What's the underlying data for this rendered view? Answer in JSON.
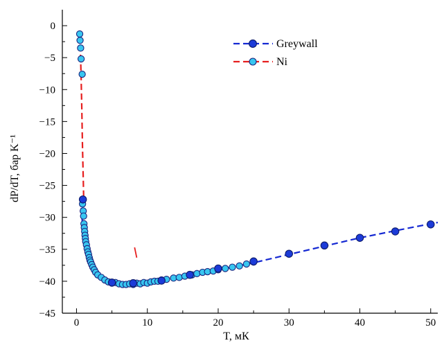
{
  "chart_data": {
    "type": "scatter",
    "xlabel": "T, мК",
    "ylabel": "dP/dT, бар K⁻¹",
    "xlim": [
      -2,
      51
    ],
    "ylim": [
      -45,
      2.5
    ],
    "xticks": [
      0,
      10,
      20,
      30,
      40,
      50
    ],
    "yticks": [
      0,
      -5,
      -10,
      -15,
      -20,
      -25,
      -30,
      -35,
      -40,
      -45
    ],
    "xtick_labels": [
      "0",
      "10",
      "20",
      "30",
      "40",
      "50"
    ],
    "ytick_labels": [
      "0",
      "−5",
      "−10",
      "−15",
      "−20",
      "−25",
      "−30",
      "−35",
      "−40",
      "−45"
    ],
    "grid": false,
    "legend_position": "top-center",
    "colors": {
      "greywall": "#1428d2",
      "ni": "#e61e1e",
      "marker_dark": "#1c3bd8",
      "marker_light": "#38c6f0",
      "marker_edge": "#1a237e"
    },
    "series": [
      {
        "name": "Greywall",
        "style": "dashed-line-dark-markers",
        "line": {
          "x": [
            0.6,
            0.7,
            0.8,
            1.0,
            1.3,
            1.6,
            2.0,
            2.5,
            3.0,
            4.0,
            5.0,
            6.0,
            7.0,
            8.0,
            9.0,
            10.0,
            12.0,
            14.0,
            16.0,
            18.0,
            20.0,
            22.0,
            25.0,
            30.0,
            35.0,
            40.0,
            45.0,
            50.0,
            51.0
          ],
          "y": [
            -27.0,
            -28.8,
            -30.4,
            -32.0,
            -33.9,
            -35.2,
            -36.6,
            -37.9,
            -38.9,
            -40.0,
            -40.4,
            -40.5,
            -40.4,
            -40.3,
            -40.1,
            -39.9,
            -39.6,
            -39.3,
            -39.0,
            -38.6,
            -38.2,
            -37.8,
            -37.1,
            -35.8,
            -34.5,
            -33.2,
            -32.1,
            -31.0,
            -30.8
          ]
        },
        "markers": {
          "x": [
            0.9,
            5.0,
            8.0,
            12.0,
            16.0,
            20.0,
            25.0,
            30.0,
            35.0,
            40.0,
            45.0,
            50.0
          ],
          "y": [
            -27.2,
            -40.2,
            -40.3,
            -39.9,
            -39.0,
            -38.0,
            -36.9,
            -35.7,
            -34.4,
            -33.2,
            -32.2,
            -31.1
          ]
        }
      },
      {
        "name": "Ni",
        "style": "dashed-line-light-markers",
        "line": {
          "x": [
            0.45,
            0.55,
            0.65,
            0.75,
            0.85,
            0.95,
            1.05
          ],
          "y": [
            -1.5,
            -4.0,
            -8.0,
            -13.0,
            -19.0,
            -24.0,
            -29.0
          ]
        },
        "markers": {
          "x": [
            0.45,
            0.5,
            0.58,
            0.65,
            0.8,
            0.85,
            0.95,
            1.0,
            1.05,
            1.1,
            1.15,
            1.2,
            1.25,
            1.3,
            1.4,
            1.5,
            1.6,
            1.7,
            1.8,
            1.9,
            2.0,
            2.15,
            2.3,
            2.5,
            2.7,
            3.0,
            3.5,
            4.0,
            4.5,
            5.0,
            5.5,
            6.0,
            6.5,
            7.0,
            7.5,
            8.0,
            8.5,
            9.0,
            9.5,
            10.0,
            10.5,
            11.0,
            11.5,
            12.0,
            12.7,
            13.7,
            14.5,
            15.3,
            16.3,
            17.0,
            17.8,
            18.5,
            19.3,
            20.0,
            21.0,
            22.0,
            23.0,
            24.0,
            25.0
          ],
          "y": [
            -1.3,
            -2.3,
            -3.5,
            -5.2,
            -7.6,
            -27.9,
            -29.0,
            -29.8,
            -31.0,
            -31.6,
            -32.2,
            -32.8,
            -33.3,
            -33.8,
            -34.3,
            -34.9,
            -35.4,
            -35.8,
            -36.3,
            -36.7,
            -37.0,
            -37.4,
            -37.8,
            -38.2,
            -38.6,
            -39.0,
            -39.4,
            -39.8,
            -40.1,
            -40.3,
            -40.2,
            -40.4,
            -40.5,
            -40.5,
            -40.4,
            -40.5,
            -40.3,
            -40.4,
            -40.2,
            -40.3,
            -40.1,
            -40.0,
            -40.0,
            -39.8,
            -39.7,
            -39.5,
            -39.4,
            -39.2,
            -39.0,
            -38.8,
            -38.6,
            -38.5,
            -38.4,
            -38.2,
            -38.0,
            -37.8,
            -37.6,
            -37.3,
            -37.0
          ]
        }
      }
    ],
    "annotations": [
      {
        "type": "stray-mark",
        "x1": 8.2,
        "y1": -34.7,
        "x2": 8.5,
        "y2": -36.3,
        "color": "#e61e1e"
      }
    ]
  }
}
